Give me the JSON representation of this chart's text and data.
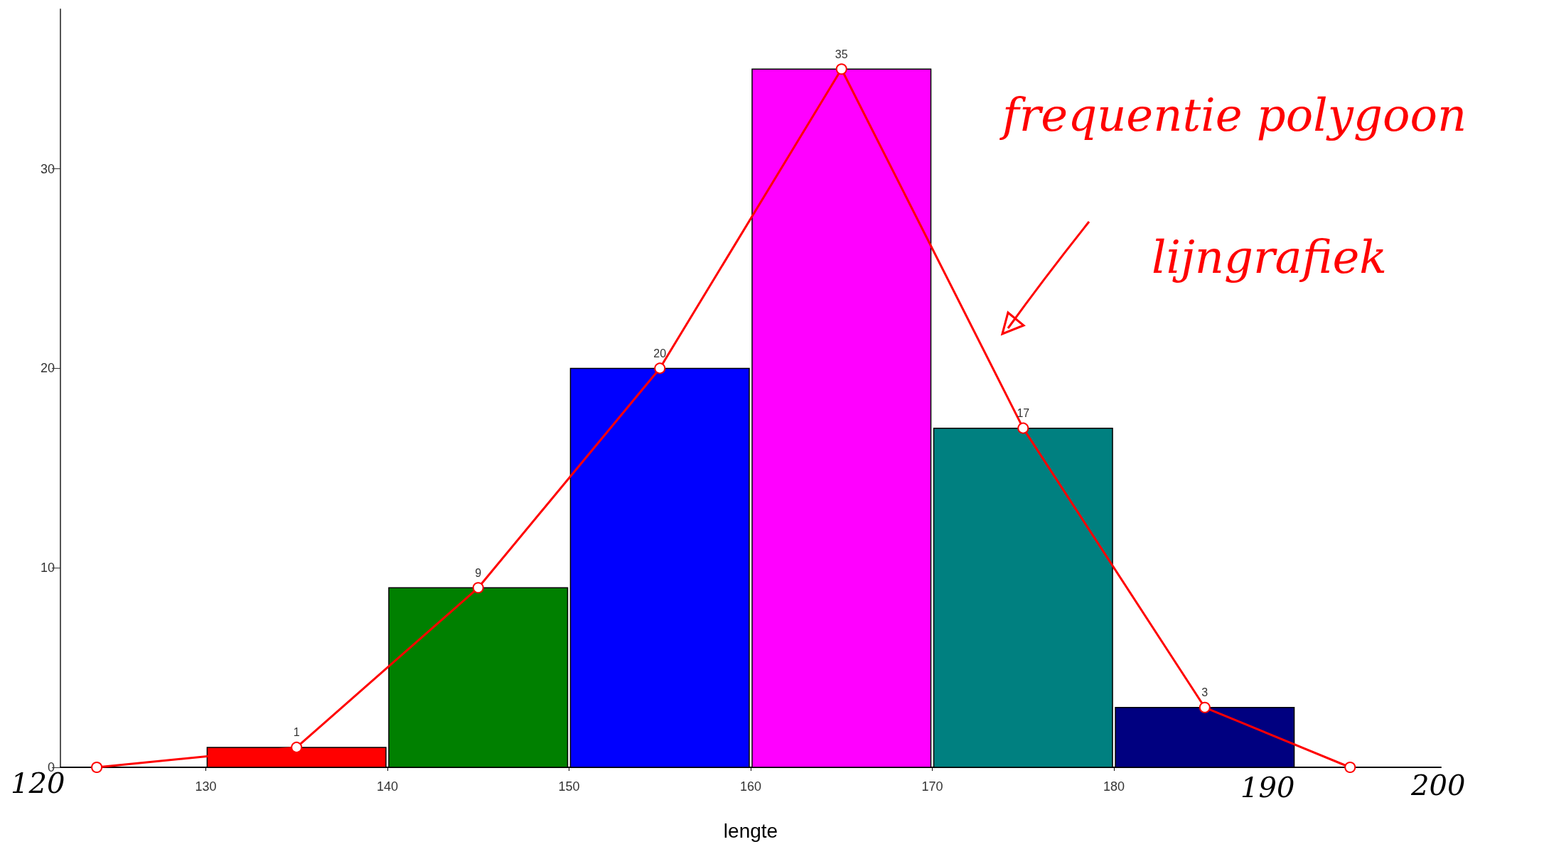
{
  "chart_data": {
    "type": "histogram",
    "xlabel": "lengte",
    "bins": [
      130,
      140,
      150,
      160,
      170,
      180,
      190
    ],
    "values": [
      1,
      9,
      20,
      35,
      17,
      3
    ],
    "colors": [
      "#ff0000",
      "#008000",
      "#0000ff",
      "#ff00ff",
      "#008080",
      "#000080"
    ],
    "series": [
      {
        "type": "line",
        "color": "#ff0000",
        "x": [
          124,
          135,
          145,
          155,
          165,
          175,
          185,
          193
        ],
        "values": [
          0,
          1,
          9,
          20,
          35,
          17,
          3,
          0
        ],
        "value_labels": [
          null,
          "1",
          "9",
          "20",
          "35",
          "17",
          "3",
          null
        ]
      }
    ],
    "marker": "circle",
    "xlim": [
      122,
      198
    ],
    "xticks": [
      130,
      140,
      150,
      160,
      170,
      180
    ],
    "ylim": [
      0,
      38
    ],
    "yticks": [
      0,
      10,
      20,
      30
    ],
    "grid": false,
    "annotations": [
      "frequentie polygoon",
      "lijngrafiek",
      "120",
      "190",
      "200"
    ]
  }
}
